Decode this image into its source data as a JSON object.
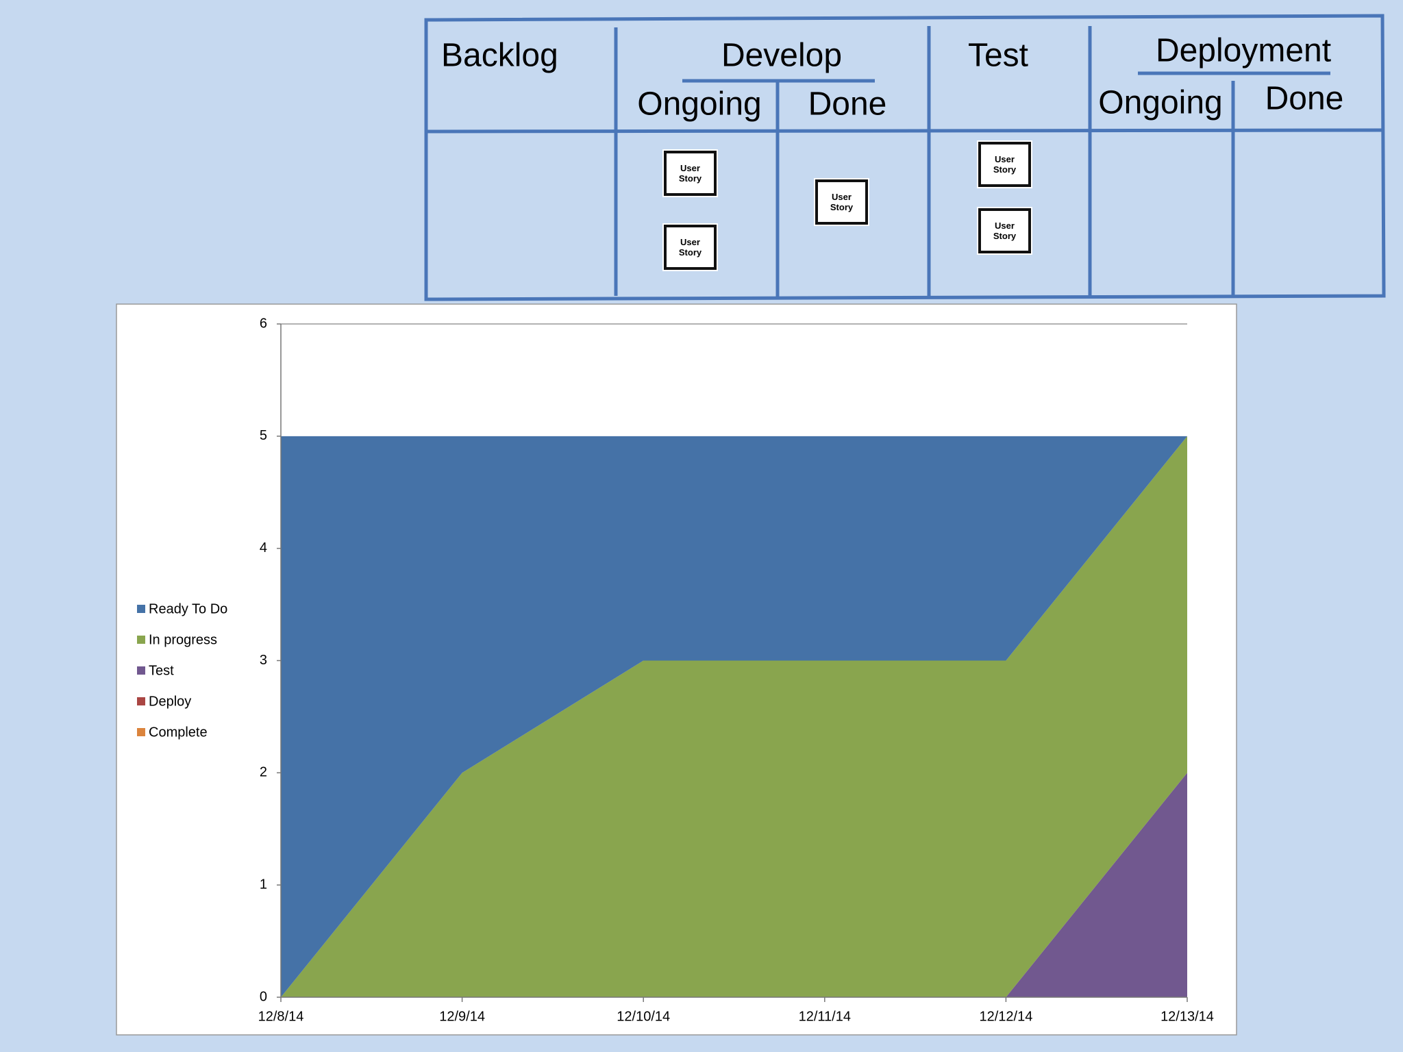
{
  "board": {
    "columns": [
      {
        "title": "Backlog"
      },
      {
        "title": "Develop",
        "subcolumns": [
          {
            "title": "Ongoing",
            "cards": [
              "User Story",
              "User Story"
            ]
          },
          {
            "title": "Done",
            "cards": [
              "User Story"
            ]
          }
        ]
      },
      {
        "title": "Test",
        "cards": [
          "User Story",
          "User Story"
        ]
      },
      {
        "title": "Deployment",
        "subcolumns": [
          {
            "title": "Ongoing"
          },
          {
            "title": "Done"
          }
        ]
      }
    ]
  },
  "chart_data": {
    "type": "stacked_area",
    "categories": [
      "12/8/14",
      "12/9/14",
      "12/10/14",
      "12/11/14",
      "12/12/14",
      "12/13/14"
    ],
    "series": [
      {
        "name": "Ready To Do",
        "color": "#4572a7",
        "values": [
          5,
          3,
          2,
          2,
          2,
          0
        ]
      },
      {
        "name": "In progress",
        "color": "#89a54e",
        "values": [
          0,
          2,
          3,
          3,
          3,
          3
        ]
      },
      {
        "name": "Test",
        "color": "#71588f",
        "values": [
          0,
          0,
          0,
          0,
          0,
          2
        ]
      },
      {
        "name": "Deploy",
        "color": "#aa4643",
        "values": [
          0,
          0,
          0,
          0,
          0,
          0
        ]
      },
      {
        "name": "Complete",
        "color": "#db843d",
        "values": [
          0,
          0,
          0,
          0,
          0,
          0
        ]
      }
    ],
    "ylim": [
      0,
      6
    ],
    "yticks": [
      0,
      1,
      2,
      3,
      4,
      5,
      6
    ],
    "legend": "left"
  }
}
